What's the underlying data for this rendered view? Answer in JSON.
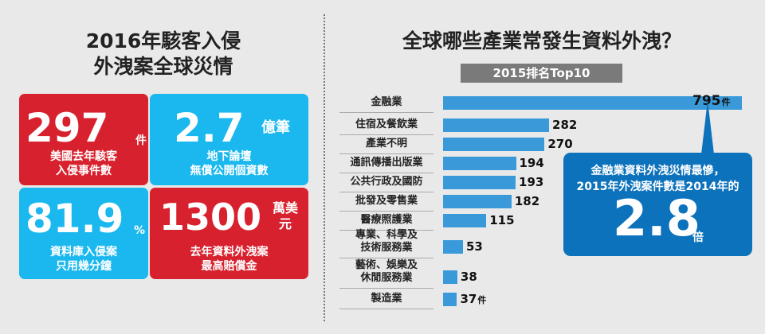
{
  "left": {
    "title_line1": "2016年駭客入侵",
    "title_line2": "外洩案全球災情",
    "tiles": [
      {
        "number": "297",
        "unit": "件",
        "caption_line1": "美國去年駭客",
        "caption_line2": "入侵事件數",
        "color": "#d8212e"
      },
      {
        "number": "2.7",
        "unit": "億筆",
        "caption_line1": "地下論壇",
        "caption_line2": "無償公開個資數",
        "color": "#1ab8ee"
      },
      {
        "number": "81.9",
        "unit": "%",
        "caption_line1": "資料庫入侵案",
        "caption_line2": "只用幾分鐘",
        "color": "#1ab8ee"
      },
      {
        "number": "1300",
        "unit_line1": "萬美",
        "unit_line2": "元",
        "caption_line1": "去年資料外洩案",
        "caption_line2": "最高賠償金",
        "color": "#d8212e"
      }
    ]
  },
  "chart_data": {
    "type": "bar",
    "orientation": "horizontal",
    "title": "全球哪些產業常發生資料外洩？",
    "subtitle": "2015排名Top10",
    "categories": [
      [
        "金融業"
      ],
      [
        "住宿及餐飲業"
      ],
      [
        "產業不明"
      ],
      [
        "通訊傳播出版業"
      ],
      [
        "公共行政及國防"
      ],
      [
        "批發及零售業"
      ],
      [
        "醫療照護業"
      ],
      [
        "專業、科學及",
        "技術服務業"
      ],
      [
        "藝術、娛樂及",
        "休閒服務業"
      ],
      [
        "製造業"
      ]
    ],
    "values": [
      795,
      282,
      270,
      194,
      193,
      182,
      115,
      53,
      38,
      37
    ],
    "value_units": {
      "0": "件",
      "9": "件"
    },
    "bar_color": "#3a9ad9",
    "xlim": [
      0,
      795
    ]
  },
  "callout": {
    "line1": "金融業資料外洩災情最慘，",
    "line2": "2015年外洩案件數是2014年的",
    "value": "2.8",
    "unit": "倍",
    "color": "#0c72bc"
  }
}
